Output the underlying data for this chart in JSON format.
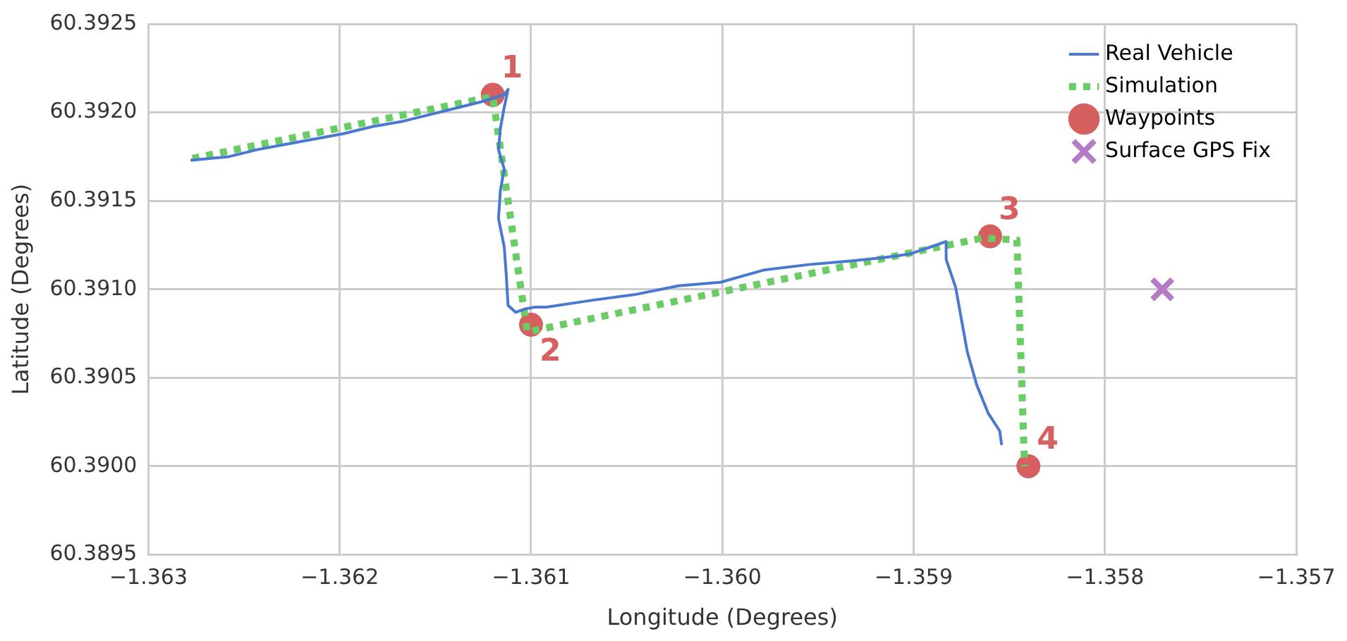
{
  "chart_data": {
    "type": "line",
    "xlabel": "Longitude (Degrees)",
    "ylabel": "Latitude (Degrees)",
    "xlim": [
      -1.363,
      -1.357
    ],
    "ylim": [
      60.3895,
      60.3925
    ],
    "xticks": [
      {
        "value": -1.363,
        "label": "−1.363"
      },
      {
        "value": -1.362,
        "label": "−1.362"
      },
      {
        "value": -1.361,
        "label": "−1.361"
      },
      {
        "value": -1.36,
        "label": "−1.360"
      },
      {
        "value": -1.359,
        "label": "−1.359"
      },
      {
        "value": -1.358,
        "label": "−1.358"
      },
      {
        "value": -1.357,
        "label": "−1.357"
      }
    ],
    "yticks": [
      {
        "value": 60.3895,
        "label": "60.3895"
      },
      {
        "value": 60.39,
        "label": "60.3900"
      },
      {
        "value": 60.3905,
        "label": "60.3905"
      },
      {
        "value": 60.391,
        "label": "60.3910"
      },
      {
        "value": 60.3915,
        "label": "60.3915"
      },
      {
        "value": 60.392,
        "label": "60.3920"
      },
      {
        "value": 60.3925,
        "label": "60.3925"
      }
    ],
    "grid": true,
    "legend": "top right",
    "series": [
      {
        "name": "Real Vehicle",
        "color": "#4878cf",
        "marker": "none",
        "line_style": "solid",
        "x": [
          -1.36278,
          -1.36258,
          -1.36243,
          -1.36228,
          -1.36213,
          -1.36198,
          -1.36183,
          -1.36167,
          -1.36152,
          -1.36137,
          -1.36126,
          -1.36114,
          -1.36112,
          -1.36114,
          -1.36116,
          -1.36117,
          -1.36114,
          -1.36116,
          -1.36117,
          -1.36114,
          -1.36113,
          -1.36112,
          -1.36108,
          -1.36103,
          -1.36098,
          -1.36092,
          -1.36067,
          -1.36046,
          -1.36023,
          -1.36001,
          -1.35978,
          -1.35955,
          -1.35933,
          -1.35915,
          -1.35902,
          -1.35891,
          -1.35883,
          -1.35883,
          -1.35878,
          -1.35874,
          -1.35872,
          -1.35867,
          -1.35861,
          -1.35855,
          -1.35854
        ],
        "values": [
          60.39173,
          60.39175,
          60.39179,
          60.39182,
          60.39185,
          60.39188,
          60.39192,
          60.39195,
          60.39199,
          60.39203,
          60.39206,
          60.3921,
          60.39213,
          60.39203,
          60.39191,
          60.39179,
          60.39168,
          60.39156,
          60.3914,
          60.39124,
          60.39109,
          60.39091,
          60.39087,
          60.39089,
          60.3909,
          60.3909,
          60.39094,
          60.39097,
          60.39102,
          60.39104,
          60.39111,
          60.39114,
          60.39116,
          60.39118,
          60.3912,
          60.39124,
          60.39127,
          60.39117,
          60.39101,
          60.39077,
          60.39065,
          60.39046,
          60.3903,
          60.3902,
          60.39012
        ]
      },
      {
        "name": "Simulation",
        "color": "#6acc65",
        "marker": "none",
        "line_style": "dotted",
        "x": [
          -1.36277,
          -1.3612,
          -1.36102,
          -1.35864,
          -1.35846,
          -1.35842
        ],
        "values": [
          60.39174,
          60.39209,
          60.39076,
          60.39129,
          60.39128,
          60.39
        ]
      },
      {
        "name": "Waypoints",
        "type": "scatter",
        "color": "#d65f5f",
        "marker": "circle",
        "x": [
          -1.3612,
          -1.361,
          -1.3586,
          -1.3584
        ],
        "values": [
          60.3921,
          60.3908,
          60.3913,
          60.39
        ]
      },
      {
        "name": "Surface GPS Fix",
        "type": "scatter",
        "color": "#b47cc7",
        "marker": "cross",
        "x": [
          -1.3577
        ],
        "values": [
          60.391
        ]
      }
    ],
    "annotations": [
      {
        "text": "1",
        "x": -1.3612,
        "y": 60.3921
      },
      {
        "text": "2",
        "x": -1.361,
        "y": 60.3908
      },
      {
        "text": "3",
        "x": -1.3586,
        "y": 60.3913
      },
      {
        "text": "4",
        "x": -1.3584,
        "y": 60.39
      }
    ]
  }
}
